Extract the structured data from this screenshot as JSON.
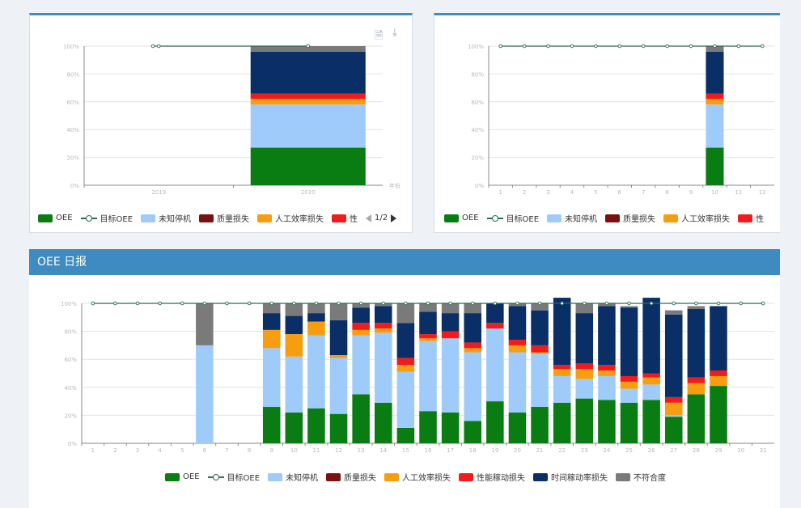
{
  "colors": {
    "oee": "#0a7d12",
    "target": "#2d6b55",
    "unknown": "#9ecbfa",
    "quality": "#7a1010",
    "labor": "#f79e10",
    "perf": "#f01b1b",
    "time": "#0a2f66",
    "nonconf": "#7a7a7a",
    "grid": "#e2e2e2",
    "axis": "#888888",
    "header": "#3d8bc0"
  },
  "icons": {
    "doc": "document-icon",
    "download": "download-icon"
  },
  "daily_title": "OEE 日报",
  "legend_full": [
    {
      "key": "oee",
      "label": "OEE"
    },
    {
      "key": "target",
      "label": "目标OEE"
    },
    {
      "key": "unknown",
      "label": "未知停机"
    },
    {
      "key": "quality",
      "label": "质量损失"
    },
    {
      "key": "labor",
      "label": "人工效率损失"
    },
    {
      "key": "perf",
      "label": "性能稼动损失"
    },
    {
      "key": "time",
      "label": "时间稼动率损失"
    },
    {
      "key": "nonconf",
      "label": "不符合度"
    }
  ],
  "legend_short": [
    {
      "key": "oee",
      "label": "OEE"
    },
    {
      "key": "target",
      "label": "目标OEE"
    },
    {
      "key": "unknown",
      "label": "未知停机"
    },
    {
      "key": "quality",
      "label": "质量损失"
    },
    {
      "key": "labor",
      "label": "人工效率损失"
    },
    {
      "key": "perf",
      "label": "性"
    }
  ],
  "legend_short2": [
    {
      "key": "oee",
      "label": "OEE"
    },
    {
      "key": "target",
      "label": "目标OEE"
    },
    {
      "key": "unknown",
      "label": "未知停机"
    },
    {
      "key": "quality",
      "label": "质量损失"
    },
    {
      "key": "labor",
      "label": "人工效率损失"
    },
    {
      "key": "perf",
      "label": "性"
    }
  ],
  "pager": {
    "text": "1/2"
  },
  "chart_data": [
    {
      "type": "bar",
      "name": "yearly",
      "categories": [
        "2019",
        "2020"
      ],
      "xlabel": "年份",
      "y_ticks": [
        "0%",
        "20%",
        "40%",
        "60%",
        "80%",
        "100%"
      ],
      "ylim": [
        0,
        100
      ],
      "stacked": true,
      "series": [
        {
          "key": "oee",
          "values": [
            0,
            27
          ]
        },
        {
          "key": "unknown",
          "values": [
            0,
            31
          ]
        },
        {
          "key": "quality",
          "values": [
            0,
            0
          ]
        },
        {
          "key": "labor",
          "values": [
            0,
            4
          ]
        },
        {
          "key": "perf",
          "values": [
            0,
            4
          ]
        },
        {
          "key": "time",
          "values": [
            0,
            30
          ]
        },
        {
          "key": "nonconf",
          "values": [
            0,
            4
          ]
        }
      ],
      "target": [
        100,
        100
      ]
    },
    {
      "type": "bar",
      "name": "monthly",
      "categories": [
        "1",
        "2",
        "3",
        "4",
        "5",
        "6",
        "7",
        "8",
        "9",
        "10",
        "11",
        "12"
      ],
      "y_ticks": [
        "0%",
        "20%",
        "40%",
        "60%",
        "80%",
        "100%"
      ],
      "ylim": [
        0,
        100
      ],
      "stacked": true,
      "series": [
        {
          "key": "oee",
          "values": [
            0,
            0,
            0,
            0,
            0,
            0,
            0,
            0,
            0,
            27,
            0,
            0
          ]
        },
        {
          "key": "unknown",
          "values": [
            0,
            0,
            0,
            0,
            0,
            0,
            0,
            0,
            0,
            31,
            0,
            0
          ]
        },
        {
          "key": "quality",
          "values": [
            0,
            0,
            0,
            0,
            0,
            0,
            0,
            0,
            0,
            0,
            0,
            0
          ]
        },
        {
          "key": "labor",
          "values": [
            0,
            0,
            0,
            0,
            0,
            0,
            0,
            0,
            0,
            4,
            0,
            0
          ]
        },
        {
          "key": "perf",
          "values": [
            0,
            0,
            0,
            0,
            0,
            0,
            0,
            0,
            0,
            4,
            0,
            0
          ]
        },
        {
          "key": "time",
          "values": [
            0,
            0,
            0,
            0,
            0,
            0,
            0,
            0,
            0,
            30,
            0,
            0
          ]
        },
        {
          "key": "nonconf",
          "values": [
            0,
            0,
            0,
            0,
            0,
            0,
            0,
            0,
            0,
            4,
            0,
            0
          ]
        }
      ],
      "target": [
        100,
        100,
        100,
        100,
        100,
        100,
        100,
        100,
        100,
        100,
        100,
        100
      ]
    },
    {
      "type": "bar",
      "name": "daily",
      "categories": [
        "1",
        "2",
        "3",
        "4",
        "5",
        "6",
        "7",
        "8",
        "9",
        "10",
        "11",
        "12",
        "13",
        "14",
        "15",
        "16",
        "17",
        "18",
        "19",
        "20",
        "21",
        "22",
        "23",
        "24",
        "25",
        "26",
        "27",
        "28",
        "29",
        "30",
        "31"
      ],
      "y_ticks": [
        "0%",
        "20%",
        "40%",
        "60%",
        "80%",
        "100%"
      ],
      "ylim": [
        0,
        100
      ],
      "stacked": true,
      "series": [
        {
          "key": "oee",
          "values": [
            0,
            0,
            0,
            0,
            0,
            0,
            0,
            0,
            26,
            22,
            25,
            21,
            35,
            29,
            11,
            23,
            22,
            16,
            30,
            22,
            26,
            29,
            32,
            31,
            29,
            31,
            19,
            35,
            41,
            0,
            0
          ]
        },
        {
          "key": "unknown",
          "values": [
            0,
            0,
            0,
            0,
            0,
            70,
            0,
            0,
            42,
            40,
            52,
            40,
            42,
            50,
            40,
            50,
            53,
            49,
            52,
            43,
            38,
            19,
            14,
            17,
            10,
            11,
            1,
            0,
            0,
            0,
            0
          ]
        },
        {
          "key": "quality",
          "values": [
            0,
            0,
            0,
            0,
            0,
            0,
            0,
            0,
            0,
            0,
            0,
            0,
            0,
            0,
            0,
            0,
            0,
            0,
            0,
            0,
            0,
            0,
            0,
            0,
            0,
            0,
            0,
            0,
            0,
            0,
            0
          ]
        },
        {
          "key": "labor",
          "values": [
            0,
            0,
            0,
            0,
            0,
            0,
            0,
            0,
            13,
            16,
            10,
            2,
            4,
            3,
            5,
            2,
            0,
            3,
            0,
            5,
            1,
            5,
            7,
            4,
            5,
            5,
            9,
            8,
            7,
            0,
            0
          ]
        },
        {
          "key": "perf",
          "values": [
            0,
            0,
            0,
            0,
            0,
            0,
            0,
            0,
            0,
            0,
            0,
            0,
            5,
            4,
            5,
            3,
            5,
            4,
            4,
            4,
            5,
            3,
            4,
            4,
            4,
            3,
            4,
            4,
            4,
            0,
            0
          ]
        },
        {
          "key": "time",
          "values": [
            0,
            0,
            0,
            0,
            0,
            0,
            0,
            0,
            12,
            13,
            6,
            25,
            11,
            12,
            25,
            16,
            13,
            21,
            14,
            24,
            25,
            48,
            36,
            42,
            49,
            54,
            59,
            49,
            46,
            0,
            0
          ]
        },
        {
          "key": "nonconf",
          "values": [
            0,
            0,
            0,
            0,
            0,
            30,
            0,
            0,
            7,
            9,
            7,
            12,
            3,
            2,
            14,
            6,
            7,
            7,
            0,
            2,
            5,
            0,
            7,
            2,
            1,
            0,
            3,
            2,
            0,
            0,
            0
          ]
        }
      ],
      "target": [
        100,
        100,
        100,
        100,
        100,
        100,
        100,
        100,
        100,
        100,
        100,
        100,
        100,
        100,
        100,
        100,
        100,
        100,
        100,
        100,
        100,
        100,
        100,
        100,
        100,
        100,
        100,
        100,
        100,
        100,
        100
      ]
    }
  ]
}
